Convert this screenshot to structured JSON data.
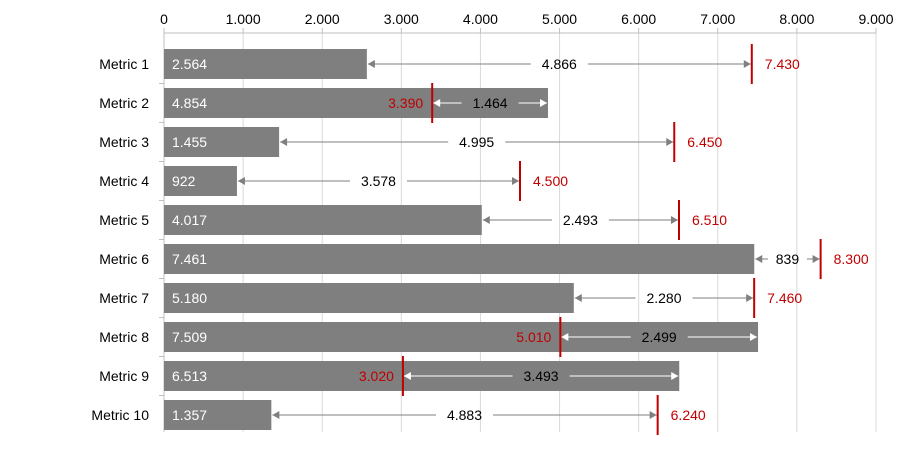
{
  "chart_data": {
    "type": "bar",
    "orientation": "horizontal",
    "title": "",
    "xlabel": "",
    "ylabel": "",
    "xlim": [
      0,
      9000
    ],
    "x_ticks": [
      0,
      1000,
      2000,
      3000,
      4000,
      5000,
      6000,
      7000,
      8000,
      9000
    ],
    "x_tick_labels": [
      "0",
      "1.000",
      "2.000",
      "3.000",
      "4.000",
      "5.000",
      "6.000",
      "7.000",
      "8.000",
      "9.000"
    ],
    "axis_position": "top",
    "grid": true,
    "legend": "none",
    "categories": [
      "Metric 1",
      "Metric 2",
      "Metric 3",
      "Metric 4",
      "Metric 5",
      "Metric 6",
      "Metric 7",
      "Metric 8",
      "Metric 9",
      "Metric 10"
    ],
    "values": [
      2564,
      4854,
      1455,
      922,
      4017,
      7461,
      5180,
      7509,
      6513,
      1357
    ],
    "value_labels": [
      "2.564",
      "4.854",
      "1.455",
      "922",
      "4.017",
      "7.461",
      "5.180",
      "7.509",
      "6.513",
      "1.357"
    ],
    "targets": [
      7430,
      3390,
      6450,
      4500,
      6510,
      8300,
      7460,
      5010,
      3020,
      6240
    ],
    "target_labels": [
      "7.430",
      "3.390",
      "6.450",
      "4.500",
      "6.510",
      "8.300",
      "7.460",
      "5.010",
      "3.020",
      "6.240"
    ],
    "differences": [
      4866,
      1464,
      4995,
      3578,
      2493,
      839,
      2280,
      2499,
      3493,
      4883
    ],
    "difference_labels": [
      "4.866",
      "1.464",
      "4.995",
      "3.578",
      "2.493",
      "839",
      "2.280",
      "2.499",
      "3.493",
      "4.883"
    ],
    "colors": {
      "bar": "#7f7f7f",
      "target": "#c00000",
      "grid": "#d9d9d9",
      "axis": "#bfbfbf",
      "arrow_outside": "#7f7f7f",
      "arrow_inside": "#ffffff"
    }
  }
}
